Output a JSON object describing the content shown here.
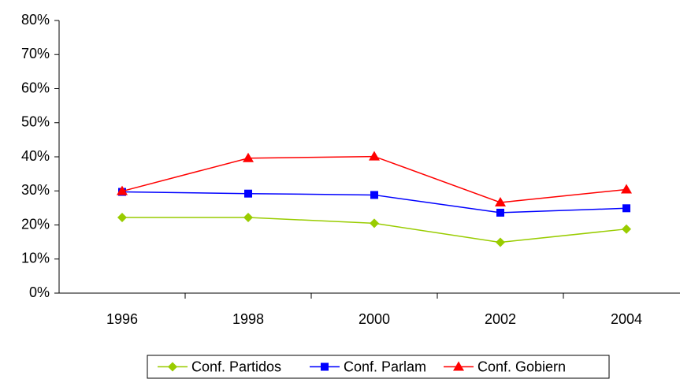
{
  "chart_data": {
    "type": "line",
    "categories": [
      "1996",
      "1998",
      "2000",
      "2002",
      "2004"
    ],
    "series": [
      {
        "name": "Conf. Partidos",
        "color": "#99cc00",
        "marker": "diamond",
        "values": [
          22.2,
          22.2,
          20.5,
          14.9,
          18.8
        ]
      },
      {
        "name": "Conf. Parlam",
        "color": "#0000ff",
        "marker": "square",
        "values": [
          29.7,
          29.2,
          28.8,
          23.6,
          24.9
        ]
      },
      {
        "name": "Conf. Gobiern",
        "color": "#ff0000",
        "marker": "triangle",
        "values": [
          29.9,
          39.6,
          40.1,
          26.6,
          30.4
        ]
      }
    ],
    "ylim": [
      0,
      80
    ],
    "yticks": [
      {
        "value": 0,
        "label": "0%"
      },
      {
        "value": 10,
        "label": "10%"
      },
      {
        "value": 20,
        "label": "20%"
      },
      {
        "value": 30,
        "label": "30%"
      },
      {
        "value": 40,
        "label": "40%"
      },
      {
        "value": 50,
        "label": "50%"
      },
      {
        "value": 60,
        "label": "60%"
      },
      {
        "value": 70,
        "label": "70%"
      },
      {
        "value": 80,
        "label": "80%"
      }
    ],
    "legend": "bottom"
  }
}
